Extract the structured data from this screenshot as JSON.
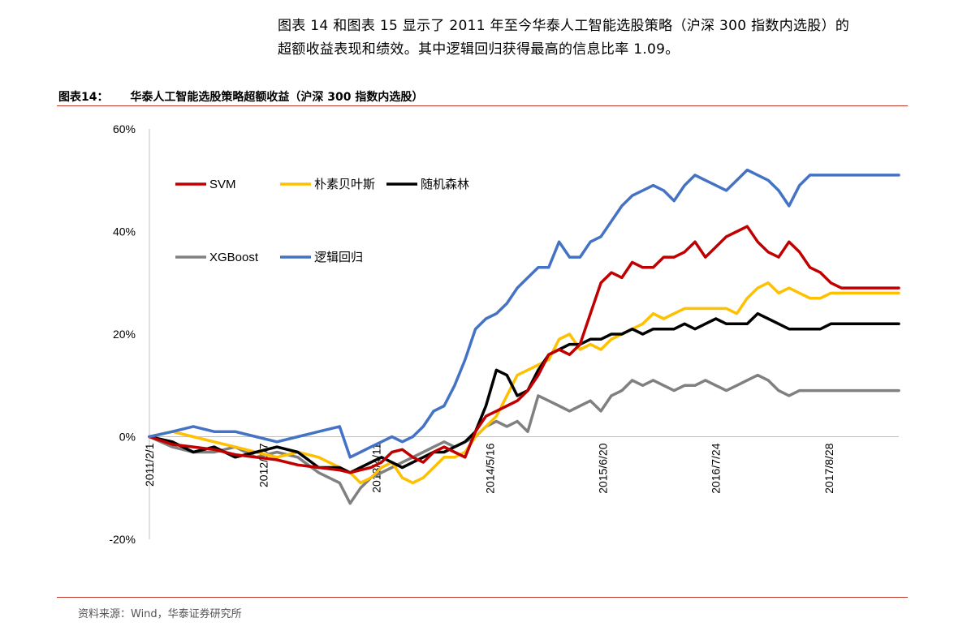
{
  "intro": {
    "line1": "图表 14 和图表 15 显示了 2011 年至今华泰人工智能选股策略（沪深 300 指数内选股）的",
    "line2": "超额收益表现和绩效。其中逻辑回归获得最高的信息比率 1.09。"
  },
  "figure": {
    "label": "图表14：",
    "title": "华泰人工智能选股策略超额收益（沪深 300 指数内选股）"
  },
  "source": "资料来源：Wind，华泰证券研究所",
  "colors": {
    "rule": "#c0392b",
    "axis": "#bfbfbf",
    "SVM": "#c00000",
    "NaiveBayes": "#ffc000",
    "RandomForest": "#000000",
    "XGBoost": "#808080",
    "Logistic": "#4472c4"
  },
  "chart_data": {
    "type": "line",
    "title": "华泰人工智能选股策略超额收益（沪深 300 指数内选股）",
    "xlabel": "",
    "ylabel": "",
    "ylim": [
      -20,
      60
    ],
    "yticks": [
      -20,
      0,
      20,
      40,
      60
    ],
    "ytick_labels": [
      "-20%",
      "0%",
      "20%",
      "40%",
      "60%"
    ],
    "xlim": [
      2011.08,
      2018.25
    ],
    "x_ticks": [
      2011.08,
      2012.17,
      2013.25,
      2014.34,
      2015.42,
      2016.5,
      2017.58
    ],
    "x_tick_labels": [
      "2011/2/1",
      "2012/3/7",
      "2013/4/11",
      "2014/5/16",
      "2015/6/20",
      "2016/7/24",
      "2017/8/28"
    ],
    "legend": "upper-left",
    "series": [
      {
        "name": "SVM",
        "key": "SVM",
        "x": [
          2011.08,
          2011.3,
          2011.5,
          2011.7,
          2011.9,
          2012.1,
          2012.3,
          2012.5,
          2012.7,
          2012.9,
          2013.0,
          2013.1,
          2013.2,
          2013.3,
          2013.4,
          2013.5,
          2013.6,
          2013.7,
          2013.8,
          2013.9,
          2014.0,
          2014.1,
          2014.2,
          2014.3,
          2014.4,
          2014.5,
          2014.6,
          2014.7,
          2014.8,
          2014.9,
          2015.0,
          2015.1,
          2015.2,
          2015.3,
          2015.4,
          2015.5,
          2015.6,
          2015.7,
          2015.8,
          2015.9,
          2016.0,
          2016.1,
          2016.2,
          2016.3,
          2016.4,
          2016.5,
          2016.6,
          2016.7,
          2016.8,
          2016.9,
          2017.0,
          2017.1,
          2017.2,
          2017.3,
          2017.4,
          2017.5,
          2017.6,
          2017.7,
          2017.8,
          2017.9,
          2018.0,
          2018.1,
          2018.2,
          2018.25
        ],
        "values": [
          0,
          -1.5,
          -2,
          -2.5,
          -3.5,
          -4,
          -4.5,
          -5.5,
          -6,
          -6.5,
          -7,
          -6.5,
          -6,
          -5,
          -3,
          -2.5,
          -4,
          -5,
          -3,
          -2,
          -3,
          -4,
          1,
          4,
          5,
          6,
          7,
          9,
          12,
          16,
          17,
          16,
          18,
          24,
          30,
          32,
          31,
          34,
          33,
          33,
          35,
          35,
          36,
          38,
          35,
          37,
          39,
          40,
          41,
          38,
          36,
          35,
          38,
          36,
          33,
          32,
          30,
          29,
          29,
          29,
          29,
          29,
          29,
          29
        ]
      },
      {
        "name": "朴素贝叶斯",
        "key": "NaiveBayes",
        "x": [
          2011.08,
          2011.3,
          2011.5,
          2011.7,
          2011.9,
          2012.1,
          2012.3,
          2012.5,
          2012.7,
          2012.9,
          2013.0,
          2013.1,
          2013.2,
          2013.3,
          2013.4,
          2013.5,
          2013.6,
          2013.7,
          2013.8,
          2013.9,
          2014.0,
          2014.1,
          2014.2,
          2014.3,
          2014.4,
          2014.5,
          2014.6,
          2014.7,
          2014.8,
          2014.9,
          2015.0,
          2015.1,
          2015.2,
          2015.3,
          2015.4,
          2015.5,
          2015.6,
          2015.7,
          2015.8,
          2015.9,
          2016.0,
          2016.1,
          2016.2,
          2016.3,
          2016.4,
          2016.5,
          2016.6,
          2016.7,
          2016.8,
          2016.9,
          2017.0,
          2017.1,
          2017.2,
          2017.3,
          2017.4,
          2017.5,
          2017.6,
          2017.7,
          2017.8,
          2017.9,
          2018.0,
          2018.1,
          2018.2,
          2018.25
        ],
        "values": [
          0,
          1,
          0,
          -1,
          -2,
          -3,
          -4,
          -3,
          -4,
          -6,
          -7,
          -9,
          -8,
          -6,
          -5,
          -8,
          -9,
          -8,
          -6,
          -4,
          -4,
          -3,
          0,
          2,
          4,
          8,
          12,
          13,
          14,
          15,
          19,
          20,
          17,
          18,
          17,
          19,
          20,
          21,
          22,
          24,
          23,
          24,
          25,
          25,
          25,
          25,
          25,
          24,
          27,
          29,
          30,
          28,
          29,
          28,
          27,
          27,
          28,
          28,
          28,
          28,
          28,
          28,
          28,
          28
        ]
      },
      {
        "name": "随机森林",
        "key": "RandomForest",
        "x": [
          2011.08,
          2011.3,
          2011.5,
          2011.7,
          2011.9,
          2012.1,
          2012.3,
          2012.5,
          2012.7,
          2012.9,
          2013.0,
          2013.1,
          2013.2,
          2013.3,
          2013.4,
          2013.5,
          2013.6,
          2013.7,
          2013.8,
          2013.9,
          2014.0,
          2014.1,
          2014.2,
          2014.3,
          2014.4,
          2014.5,
          2014.6,
          2014.7,
          2014.8,
          2014.9,
          2015.0,
          2015.1,
          2015.2,
          2015.3,
          2015.4,
          2015.5,
          2015.6,
          2015.7,
          2015.8,
          2015.9,
          2016.0,
          2016.1,
          2016.2,
          2016.3,
          2016.4,
          2016.5,
          2016.6,
          2016.7,
          2016.8,
          2016.9,
          2017.0,
          2017.1,
          2017.2,
          2017.3,
          2017.4,
          2017.5,
          2017.6,
          2017.7,
          2017.8,
          2017.9,
          2018.0,
          2018.1,
          2018.2,
          2018.25
        ],
        "values": [
          0,
          -1,
          -3,
          -2,
          -4,
          -3,
          -2,
          -3,
          -6,
          -6,
          -7,
          -6,
          -5,
          -4,
          -5,
          -6,
          -5,
          -4,
          -3,
          -3,
          -2,
          -1,
          1,
          6,
          13,
          12,
          8,
          9,
          13,
          16,
          17,
          18,
          18,
          19,
          19,
          20,
          20,
          21,
          20,
          21,
          21,
          21,
          22,
          21,
          22,
          23,
          22,
          22,
          22,
          24,
          23,
          22,
          21,
          21,
          21,
          21,
          22,
          22,
          22,
          22,
          22,
          22,
          22,
          22
        ]
      },
      {
        "name": "XGBoost",
        "key": "XGBoost",
        "x": [
          2011.08,
          2011.3,
          2011.5,
          2011.7,
          2011.9,
          2012.1,
          2012.3,
          2012.5,
          2012.7,
          2012.9,
          2013.0,
          2013.1,
          2013.2,
          2013.3,
          2013.4,
          2013.5,
          2013.6,
          2013.7,
          2013.8,
          2013.9,
          2014.0,
          2014.1,
          2014.2,
          2014.3,
          2014.4,
          2014.5,
          2014.6,
          2014.7,
          2014.8,
          2014.9,
          2015.0,
          2015.1,
          2015.2,
          2015.3,
          2015.4,
          2015.5,
          2015.6,
          2015.7,
          2015.8,
          2015.9,
          2016.0,
          2016.1,
          2016.2,
          2016.3,
          2016.4,
          2016.5,
          2016.6,
          2016.7,
          2016.8,
          2016.9,
          2017.0,
          2017.1,
          2017.2,
          2017.3,
          2017.4,
          2017.5,
          2017.6,
          2017.7,
          2017.8,
          2017.9,
          2018.0,
          2018.1,
          2018.2,
          2018.25
        ],
        "values": [
          0,
          -2,
          -3,
          -3,
          -2,
          -4,
          -3,
          -4,
          -7,
          -9,
          -13,
          -10,
          -8,
          -7,
          -6,
          -5,
          -4,
          -3,
          -2,
          -1,
          -2,
          -1,
          0,
          2,
          3,
          2,
          3,
          1,
          8,
          7,
          6,
          5,
          6,
          7,
          5,
          8,
          9,
          11,
          10,
          11,
          10,
          9,
          10,
          10,
          11,
          10,
          9,
          10,
          11,
          12,
          11,
          9,
          8,
          9,
          9,
          9,
          9,
          9,
          9,
          9,
          9,
          9,
          9,
          9
        ]
      },
      {
        "name": "逻辑回归",
        "key": "Logistic",
        "x": [
          2011.08,
          2011.3,
          2011.5,
          2011.7,
          2011.9,
          2012.1,
          2012.3,
          2012.5,
          2012.7,
          2012.9,
          2013.0,
          2013.1,
          2013.2,
          2013.3,
          2013.4,
          2013.5,
          2013.6,
          2013.7,
          2013.8,
          2013.9,
          2014.0,
          2014.1,
          2014.2,
          2014.3,
          2014.4,
          2014.5,
          2014.6,
          2014.7,
          2014.8,
          2014.9,
          2015.0,
          2015.1,
          2015.2,
          2015.3,
          2015.4,
          2015.5,
          2015.6,
          2015.7,
          2015.8,
          2015.9,
          2016.0,
          2016.1,
          2016.2,
          2016.3,
          2016.4,
          2016.5,
          2016.6,
          2016.7,
          2016.8,
          2016.9,
          2017.0,
          2017.1,
          2017.2,
          2017.3,
          2017.4,
          2017.5,
          2017.6,
          2017.7,
          2017.8,
          2017.9,
          2018.0,
          2018.1,
          2018.2,
          2018.25
        ],
        "values": [
          0,
          1,
          2,
          1,
          1,
          0,
          -1,
          0,
          1,
          2,
          -4,
          -3,
          -2,
          -1,
          0,
          -1,
          0,
          2,
          5,
          6,
          10,
          15,
          21,
          23,
          24,
          26,
          29,
          31,
          33,
          33,
          38,
          35,
          35,
          38,
          39,
          42,
          45,
          47,
          48,
          49,
          48,
          46,
          49,
          51,
          50,
          49,
          48,
          50,
          52,
          51,
          50,
          48,
          45,
          49,
          51,
          51,
          51,
          51,
          51,
          51,
          51,
          51,
          51,
          51
        ]
      }
    ]
  }
}
